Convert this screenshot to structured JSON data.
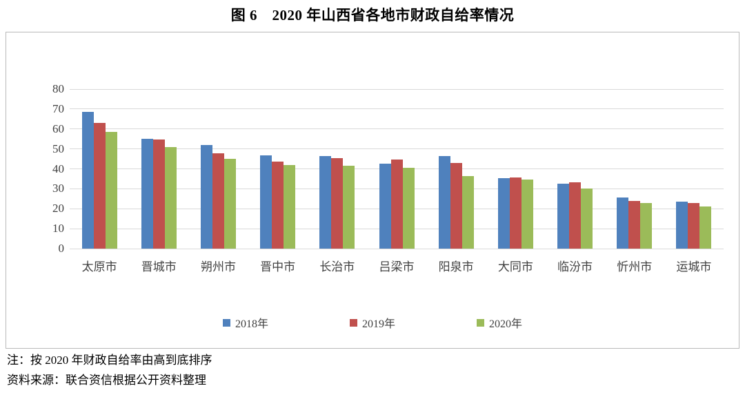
{
  "title": "图 6　2020 年山西省各地市财政自给率情况",
  "notes": {
    "line1": "注：按 2020 年财政自给率由高到底排序",
    "line2": "资料来源：联合资信根据公开资料整理"
  },
  "chart_data": {
    "type": "bar",
    "title": "图 6　2020 年山西省各地市财政自给率情况",
    "categories": [
      "太原市",
      "晋城市",
      "朔州市",
      "晋中市",
      "长治市",
      "吕梁市",
      "阳泉市",
      "大同市",
      "临汾市",
      "忻州市",
      "运城市"
    ],
    "series": [
      {
        "name": "2018年",
        "color": "#4F81BD",
        "values": [
          68.7,
          54.9,
          52.0,
          46.6,
          46.4,
          42.6,
          46.3,
          35.5,
          32.4,
          25.5,
          23.6
        ]
      },
      {
        "name": "2019年",
        "color": "#C0504D",
        "values": [
          63.2,
          54.8,
          47.8,
          43.6,
          45.4,
          44.7,
          43.0,
          35.7,
          33.2,
          24.0,
          22.8
        ]
      },
      {
        "name": "2020年",
        "color": "#9BBB59",
        "values": [
          58.4,
          51.0,
          45.1,
          41.9,
          41.7,
          40.6,
          36.4,
          34.5,
          30.3,
          22.8,
          21.1
        ]
      }
    ],
    "xlabel": "",
    "ylabel": "",
    "ylim": [
      0,
      80
    ],
    "ytick_step": 10,
    "yticks": [
      "0",
      "10",
      "20",
      "30",
      "40",
      "50",
      "60",
      "70",
      "80"
    ],
    "grid": true,
    "gridline_color": "#d9d9d9",
    "legend_position": "bottom"
  }
}
